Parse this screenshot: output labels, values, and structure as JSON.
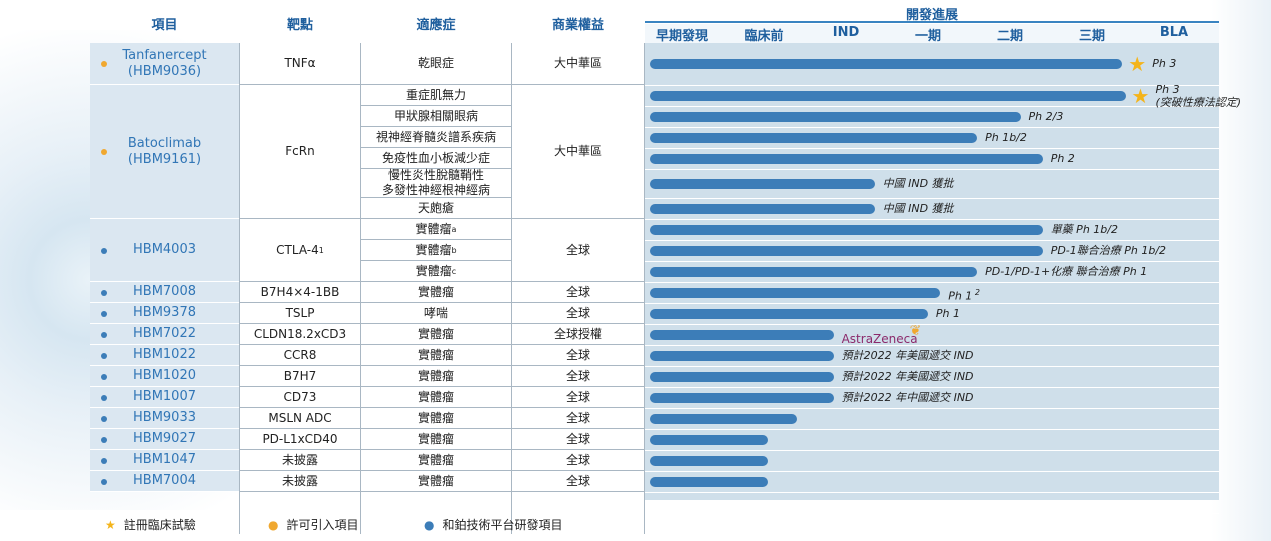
{
  "colors": {
    "header": "#1f5f9e",
    "name": "#3176b6",
    "bar": "#3c7db8",
    "star": "#f4b41a",
    "licensed_dot": "#f0a830",
    "inhouse_dot": "#3c7db8",
    "progress_bg": "#cfdfea",
    "name_bg": "#dbe7f1",
    "astrazeneca": "#8b2a6b"
  },
  "headers": {
    "item": "項目",
    "target": "靶點",
    "indication": "適應症",
    "rights": "商業權益",
    "development": "開發進展"
  },
  "phases": [
    "早期發現",
    "臨床前",
    "IND",
    "一期",
    "二期",
    "三期",
    "BLA"
  ],
  "chart_data": {
    "type": "bar",
    "orientation": "horizontal",
    "x_categories": [
      "早期發現",
      "臨床前",
      "IND",
      "一期",
      "二期",
      "三期",
      "BLA"
    ],
    "progress_scale": "phase units: 0 = start of 早期發現, 7 = end of BLA",
    "programs": [
      {
        "name": "Tanfanercept\n(HBM9036)",
        "target": "TNFα",
        "rights": "大中華區",
        "type": "licensed",
        "rows": [
          {
            "indication": "乾眼症",
            "progress": 5.82,
            "label": "Ph 3",
            "star": true
          }
        ]
      },
      {
        "name": "Batoclimab\n(HBM9161)",
        "target": "FcRn",
        "rights": "大中華區",
        "type": "licensed",
        "rows": [
          {
            "indication": "重症肌無力",
            "progress": 5.86,
            "label": "Ph 3\n(突破性療法認定)",
            "star": true
          },
          {
            "indication": "甲狀腺相關眼病",
            "progress": 4.58,
            "label": "Ph 2/3",
            "star": false
          },
          {
            "indication": "視神經脊髓炎譜系疾病",
            "progress": 4.05,
            "label": "Ph 1b/2",
            "star": false
          },
          {
            "indication": "免疫性血小板減少症",
            "progress": 4.85,
            "label": "Ph 2",
            "star": false
          },
          {
            "indication": "慢性炎性脫髓鞘性\n多發性神經根神經病",
            "progress": 2.8,
            "label": "中國 IND 獲批",
            "star": false
          },
          {
            "indication": "天皰瘡",
            "progress": 2.8,
            "label": "中國 IND 獲批",
            "star": false
          }
        ]
      },
      {
        "name": "HBM4003",
        "target": "CTLA-4",
        "target_sup": "1",
        "rights": "全球",
        "type": "inhouse",
        "rows": [
          {
            "indication": "實體瘤",
            "ind_sup": "a",
            "progress": 4.85,
            "label": "單藥 Ph 1b/2",
            "star": false
          },
          {
            "indication": "實體瘤",
            "ind_sup": "b",
            "progress": 4.85,
            "label": "PD-1聯合治療 Ph 1b/2",
            "star": false
          },
          {
            "indication": "實體瘤",
            "ind_sup": "c",
            "progress": 4.05,
            "label": "PD-1/PD-1+化療 聯合治療 Ph 1",
            "star": false
          }
        ]
      },
      {
        "name": "HBM7008",
        "target": "B7H4×4-1BB",
        "rights": "全球",
        "type": "inhouse",
        "rows": [
          {
            "indication": "實體瘤",
            "progress": 3.6,
            "label": "Ph 1",
            "label_sup": "2",
            "star": false
          }
        ]
      },
      {
        "name": "HBM9378",
        "target": "TSLP",
        "rights": "全球",
        "type": "inhouse",
        "rows": [
          {
            "indication": "哮喘",
            "progress": 3.45,
            "label": "Ph 1",
            "star": false
          }
        ]
      },
      {
        "name": "HBM7022",
        "target": "CLDN18.2xCD3",
        "rights": "全球授權",
        "type": "inhouse",
        "rows": [
          {
            "indication": "實體瘤",
            "progress": 2.3,
            "label": "AstraZeneca",
            "partner_logo": true,
            "star": false
          }
        ]
      },
      {
        "name": "HBM1022",
        "target": "CCR8",
        "rights": "全球",
        "type": "inhouse",
        "rows": [
          {
            "indication": "實體瘤",
            "progress": 2.3,
            "label": "預計2022 年美國遞交 IND",
            "star": false
          }
        ]
      },
      {
        "name": "HBM1020",
        "target": "B7H7",
        "rights": "全球",
        "type": "inhouse",
        "rows": [
          {
            "indication": "實體瘤",
            "progress": 2.3,
            "label": "預計2022 年美國遞交 IND",
            "star": false
          }
        ]
      },
      {
        "name": "HBM1007",
        "target": "CD73",
        "rights": "全球",
        "type": "inhouse",
        "rows": [
          {
            "indication": "實體瘤",
            "progress": 2.3,
            "label": "預計2022 年中國遞交 IND",
            "star": false
          }
        ]
      },
      {
        "name": "HBM9033",
        "target": "MSLN ADC",
        "rights": "全球",
        "type": "inhouse",
        "rows": [
          {
            "indication": "實體瘤",
            "progress": 1.85,
            "label": "",
            "star": false
          }
        ]
      },
      {
        "name": "HBM9027",
        "target": "PD-L1xCD40",
        "rights": "全球",
        "type": "inhouse",
        "rows": [
          {
            "indication": "實體瘤",
            "progress": 1.5,
            "label": "",
            "star": false
          }
        ]
      },
      {
        "name": "HBM1047",
        "target": "未披露",
        "rights": "全球",
        "type": "inhouse",
        "rows": [
          {
            "indication": "實體瘤",
            "progress": 1.5,
            "label": "",
            "star": false
          }
        ]
      },
      {
        "name": "HBM7004",
        "target": "未披露",
        "rights": "全球",
        "type": "inhouse",
        "rows": [
          {
            "indication": "實體瘤",
            "progress": 1.5,
            "label": "",
            "star": false
          }
        ]
      }
    ]
  },
  "legend": {
    "registration": "註冊臨床試驗",
    "licensed": "許可引入項目",
    "inhouse": "和鉑技術平台研發項目"
  }
}
